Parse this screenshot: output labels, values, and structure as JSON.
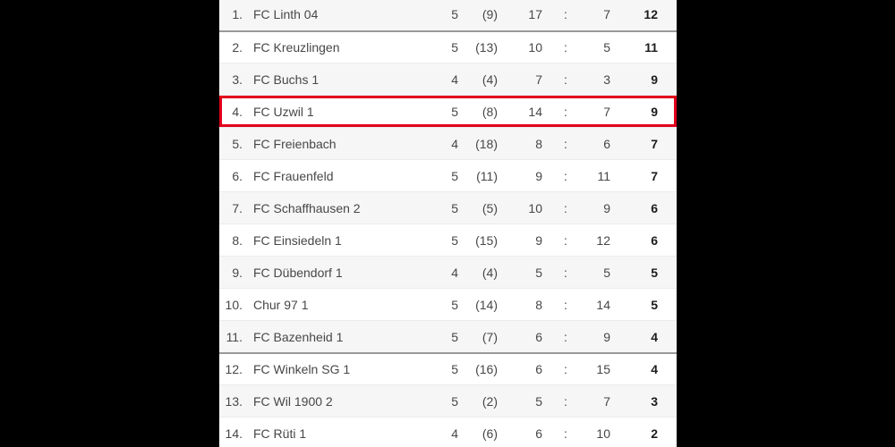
{
  "page": {
    "background_color": "#000000"
  },
  "table": {
    "score_separator": ":",
    "colors": {
      "highlight_border": "#e2001a",
      "stripe": "#f6f6f6",
      "separator": "#999999",
      "row_border": "#ececec",
      "text": "#474747",
      "points_text": "#1c1c1c",
      "table_background": "#ffffff"
    },
    "rows": [
      {
        "rank": "1.",
        "team": "FC Linth 04",
        "games": "5",
        "paren": "(9)",
        "goals_for": "17",
        "goals_against": "7",
        "points": "12",
        "highlighted": false,
        "separator_above": false
      },
      {
        "rank": "2.",
        "team": "FC Kreuzlingen",
        "games": "5",
        "paren": "(13)",
        "goals_for": "10",
        "goals_against": "5",
        "points": "11",
        "highlighted": false,
        "separator_above": true
      },
      {
        "rank": "3.",
        "team": "FC Buchs 1",
        "games": "4",
        "paren": "(4)",
        "goals_for": "7",
        "goals_against": "3",
        "points": "9",
        "highlighted": false,
        "separator_above": false
      },
      {
        "rank": "4.",
        "team": "FC Uzwil 1",
        "games": "5",
        "paren": "(8)",
        "goals_for": "14",
        "goals_against": "7",
        "points": "9",
        "highlighted": true,
        "separator_above": false
      },
      {
        "rank": "5.",
        "team": "FC Freienbach",
        "games": "4",
        "paren": "(18)",
        "goals_for": "8",
        "goals_against": "6",
        "points": "7",
        "highlighted": false,
        "separator_above": false
      },
      {
        "rank": "6.",
        "team": "FC Frauenfeld",
        "games": "5",
        "paren": "(11)",
        "goals_for": "9",
        "goals_against": "11",
        "points": "7",
        "highlighted": false,
        "separator_above": false
      },
      {
        "rank": "7.",
        "team": "FC Schaffhausen 2",
        "games": "5",
        "paren": "(5)",
        "goals_for": "10",
        "goals_against": "9",
        "points": "6",
        "highlighted": false,
        "separator_above": false
      },
      {
        "rank": "8.",
        "team": "FC Einsiedeln 1",
        "games": "5",
        "paren": "(15)",
        "goals_for": "9",
        "goals_against": "12",
        "points": "6",
        "highlighted": false,
        "separator_above": false
      },
      {
        "rank": "9.",
        "team": "FC Dübendorf 1",
        "games": "4",
        "paren": "(4)",
        "goals_for": "5",
        "goals_against": "5",
        "points": "5",
        "highlighted": false,
        "separator_above": false
      },
      {
        "rank": "10.",
        "team": "Chur 97 1",
        "games": "5",
        "paren": "(14)",
        "goals_for": "8",
        "goals_against": "14",
        "points": "5",
        "highlighted": false,
        "separator_above": false
      },
      {
        "rank": "11.",
        "team": "FC Bazenheid 1",
        "games": "5",
        "paren": "(7)",
        "goals_for": "6",
        "goals_against": "9",
        "points": "4",
        "highlighted": false,
        "separator_above": false
      },
      {
        "rank": "12.",
        "team": "FC Winkeln SG 1",
        "games": "5",
        "paren": "(16)",
        "goals_for": "6",
        "goals_against": "15",
        "points": "4",
        "highlighted": false,
        "separator_above": true
      },
      {
        "rank": "13.",
        "team": "FC Wil 1900 2",
        "games": "5",
        "paren": "(2)",
        "goals_for": "5",
        "goals_against": "7",
        "points": "3",
        "highlighted": false,
        "separator_above": false
      },
      {
        "rank": "14.",
        "team": "FC Rüti 1",
        "games": "4",
        "paren": "(6)",
        "goals_for": "6",
        "goals_against": "10",
        "points": "2",
        "highlighted": false,
        "separator_above": false
      }
    ]
  }
}
